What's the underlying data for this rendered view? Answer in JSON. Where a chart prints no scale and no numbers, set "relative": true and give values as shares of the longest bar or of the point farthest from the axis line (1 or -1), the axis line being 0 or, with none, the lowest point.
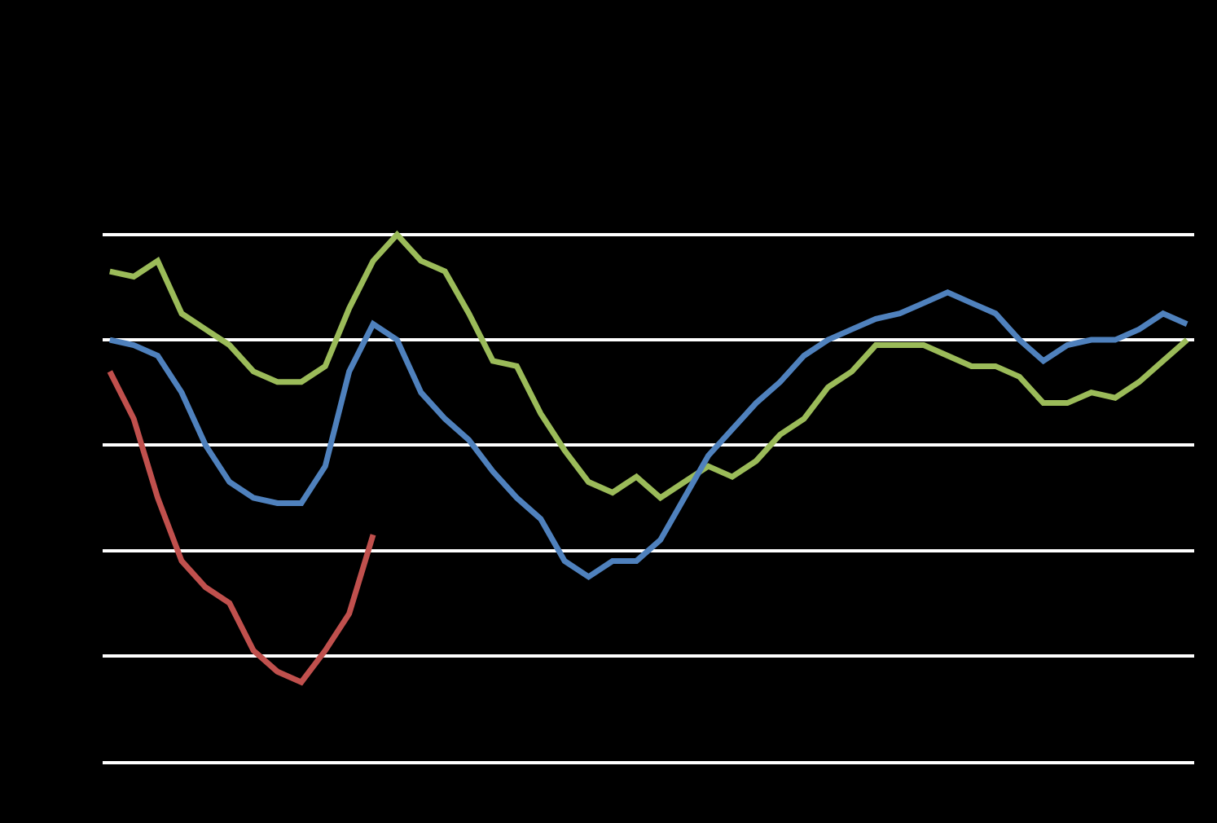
{
  "chart_data": {
    "type": "line",
    "relative": true,
    "grid": "y",
    "marker": "none",
    "line_style": "solid",
    "categories": [
      null,
      null,
      null,
      null,
      null,
      null,
      null,
      null,
      null,
      null,
      null,
      null,
      null,
      null,
      null,
      null,
      null,
      null,
      null,
      null,
      null,
      null,
      null,
      null,
      null,
      null,
      null,
      null,
      null,
      null,
      null,
      null,
      null,
      null,
      null,
      null,
      null,
      null,
      null,
      null,
      null,
      null,
      null,
      null,
      null,
      null
    ],
    "series": [
      {
        "color": "#9bbb59",
        "values": [
          0.93,
          0.92,
          0.95,
          0.85,
          0.82,
          0.79,
          0.74,
          0.72,
          0.72,
          0.75,
          0.86,
          0.95,
          1.0,
          0.95,
          0.93,
          0.85,
          0.76,
          0.75,
          0.66,
          0.59,
          0.53,
          0.51,
          0.54,
          0.5,
          0.53,
          0.56,
          0.54,
          0.57,
          0.62,
          0.65,
          0.71,
          0.74,
          0.79,
          0.79,
          0.79,
          0.77,
          0.75,
          0.75,
          0.73,
          0.68,
          0.68,
          0.7,
          0.69,
          0.72,
          0.76,
          0.8
        ]
      },
      {
        "color": "#4f81bd",
        "values": [
          0.8,
          0.79,
          0.77,
          0.7,
          0.6,
          0.53,
          0.5,
          0.49,
          0.49,
          0.56,
          0.74,
          0.83,
          0.8,
          0.7,
          0.65,
          0.61,
          0.55,
          0.5,
          0.46,
          0.38,
          0.35,
          0.38,
          0.38,
          0.42,
          0.5,
          0.58,
          0.63,
          0.68,
          0.72,
          0.77,
          0.8,
          0.82,
          0.84,
          0.85,
          0.87,
          0.89,
          0.87,
          0.85,
          0.8,
          0.76,
          0.79,
          0.8,
          0.8,
          0.82,
          0.85,
          0.83
        ]
      },
      {
        "color": "#c0504d",
        "values": [
          0.74,
          0.65,
          0.5,
          0.38,
          0.33,
          0.3,
          0.21,
          0.17,
          0.15,
          0.21,
          0.28,
          0.43,
          null,
          null,
          null,
          null,
          null,
          null,
          null,
          null,
          null,
          null,
          null,
          null,
          null,
          null,
          null,
          null,
          null,
          null,
          null,
          null,
          null,
          null,
          null,
          null,
          null,
          null,
          null,
          null,
          null,
          null,
          null,
          null,
          null,
          null
        ]
      }
    ]
  }
}
